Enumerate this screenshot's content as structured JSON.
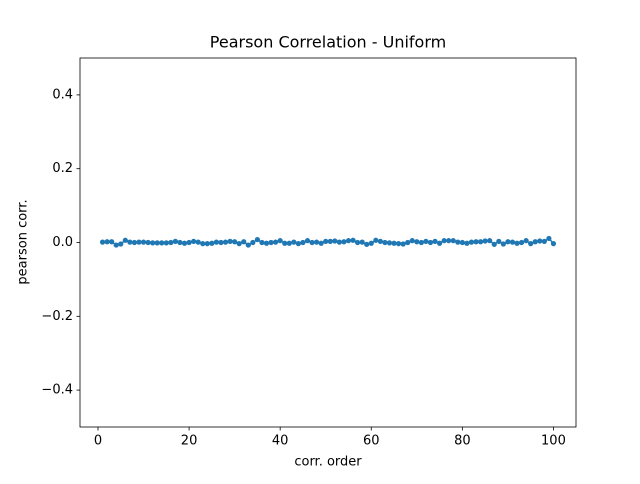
{
  "chart_data": {
    "type": "line",
    "title": "Pearson Correlation - Uniform",
    "xlabel": "corr. order",
    "ylabel": "pearson corr.",
    "x": [
      1,
      2,
      3,
      4,
      5,
      6,
      7,
      8,
      9,
      10,
      11,
      12,
      13,
      14,
      15,
      16,
      17,
      18,
      19,
      20,
      21,
      22,
      23,
      24,
      25,
      26,
      27,
      28,
      29,
      30,
      31,
      32,
      33,
      34,
      35,
      36,
      37,
      38,
      39,
      40,
      41,
      42,
      43,
      44,
      45,
      46,
      47,
      48,
      49,
      50,
      51,
      52,
      53,
      54,
      55,
      56,
      57,
      58,
      59,
      60,
      61,
      62,
      63,
      64,
      65,
      66,
      67,
      68,
      69,
      70,
      71,
      72,
      73,
      74,
      75,
      76,
      77,
      78,
      79,
      80,
      81,
      82,
      83,
      84,
      85,
      86,
      87,
      88,
      89,
      90,
      91,
      92,
      93,
      94,
      95,
      96,
      97,
      98,
      99,
      100
    ],
    "values": [
      0.001,
      0.002,
      0.002,
      -0.007,
      -0.004,
      0.006,
      0.001,
      0.0,
      0.001,
      0.001,
      0.0,
      -0.001,
      -0.001,
      -0.001,
      -0.001,
      0.0,
      0.003,
      0.0,
      -0.002,
      0.0,
      0.003,
      0.001,
      -0.003,
      -0.003,
      -0.002,
      0.001,
      0.0,
      0.001,
      0.003,
      0.002,
      -0.003,
      0.002,
      -0.007,
      0.0,
      0.008,
      0.0,
      -0.002,
      0.0,
      0.001,
      0.005,
      -0.002,
      -0.002,
      0.001,
      -0.003,
      0.0,
      0.005,
      0.0,
      0.001,
      -0.002,
      0.003,
      0.003,
      0.004,
      0.001,
      0.002,
      0.005,
      0.006,
      0.0,
      0.001,
      -0.005,
      -0.002,
      0.006,
      0.003,
      0.0,
      -0.001,
      -0.002,
      -0.003,
      -0.004,
      0.0,
      0.005,
      0.002,
      0.0,
      0.003,
      0.0,
      0.003,
      -0.002,
      0.005,
      0.005,
      0.005,
      0.001,
      0.0,
      -0.002,
      0.001,
      0.002,
      0.002,
      0.004,
      0.005,
      -0.005,
      0.003,
      -0.004,
      0.002,
      0.001,
      -0.002,
      0.0,
      0.005,
      -0.003,
      0.002,
      0.004,
      0.003,
      0.011,
      -0.003
    ],
    "color": "#1f77b4",
    "xlim": [
      -3.95,
      104.95
    ],
    "xticks": [
      0,
      20,
      40,
      60,
      80,
      100
    ],
    "ylim": [
      -0.5,
      0.5
    ],
    "yticks": [
      {
        "value": -0.4,
        "label": "−0.4"
      },
      {
        "value": -0.2,
        "label": "−0.2"
      },
      {
        "value": 0,
        "label": "0.0"
      },
      {
        "value": 0.2,
        "label": "0.2"
      },
      {
        "value": 0.4,
        "label": "0.4"
      }
    ]
  }
}
